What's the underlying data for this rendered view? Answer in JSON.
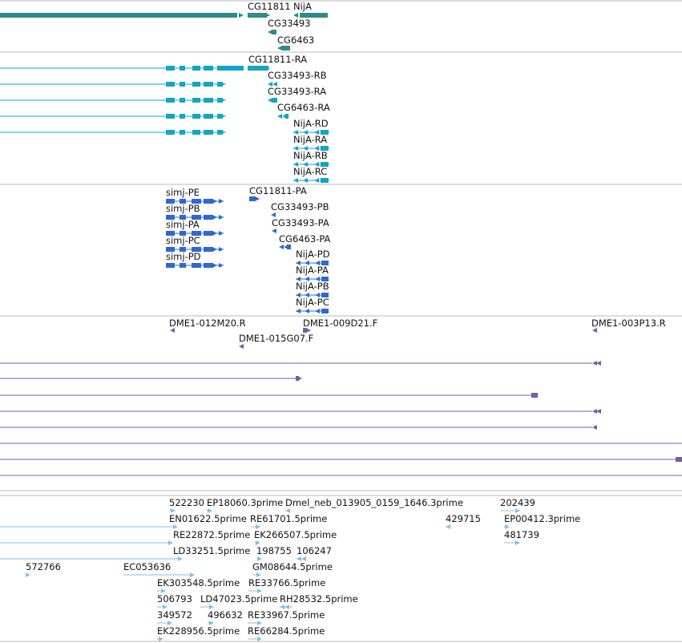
{
  "colors": {
    "genes": "#2e8b8b",
    "transcripts": "#12a6c4",
    "proteins": "#2f69cf",
    "clones": "#7a5aa6",
    "ests": "#86c0e6"
  },
  "tracks": {
    "genes": {
      "labels": [
        {
          "text": "CG11811"
        },
        {
          "text": "NijA"
        },
        {
          "text": "CG33493"
        },
        {
          "text": "CG6463"
        }
      ]
    },
    "transcripts": {
      "labels": [
        {
          "text": "CG11811-RA"
        },
        {
          "text": "CG33493-RB"
        },
        {
          "text": "CG33493-RA"
        },
        {
          "text": "CG6463-RA"
        },
        {
          "text": "NijA-RD"
        },
        {
          "text": "NijA-RA"
        },
        {
          "text": "NijA-RB"
        },
        {
          "text": "NijA-RC"
        }
      ]
    },
    "proteins": {
      "labels": [
        {
          "text": "simj-PE"
        },
        {
          "text": "simj-PB"
        },
        {
          "text": "simj-PA"
        },
        {
          "text": "simj-PC"
        },
        {
          "text": "simj-PD"
        },
        {
          "text": "CG11811-PA"
        },
        {
          "text": "CG33493-PB"
        },
        {
          "text": "CG33493-PA"
        },
        {
          "text": "CG6463-PA"
        },
        {
          "text": "NijA-PD"
        },
        {
          "text": "NijA-PA"
        },
        {
          "text": "NijA-PB"
        },
        {
          "text": "NijA-PC"
        }
      ]
    },
    "clones": {
      "labels": [
        {
          "text": "DME1-012M20.R"
        },
        {
          "text": "DME1-009D21.F"
        },
        {
          "text": "DME1-003P13.R"
        },
        {
          "text": "DME1-015G07.F"
        }
      ]
    },
    "ests": {
      "labels": [
        {
          "text": "522230"
        },
        {
          "text": "EP18060.3prime"
        },
        {
          "text": "Dmel_neb_013905_0159_1646.3prime"
        },
        {
          "text": "202439"
        },
        {
          "text": "EN01622.5prime"
        },
        {
          "text": "RE61701.5prime"
        },
        {
          "text": "429715"
        },
        {
          "text": "EP00412.3prime"
        },
        {
          "text": "RE22872.5prime"
        },
        {
          "text": "EK266507.5prime"
        },
        {
          "text": "481739"
        },
        {
          "text": "LD33251.5prime"
        },
        {
          "text": "198755"
        },
        {
          "text": "106247"
        },
        {
          "text": "572766"
        },
        {
          "text": "EC053636"
        },
        {
          "text": "GM08644.5prime"
        },
        {
          "text": "EK303548.5prime"
        },
        {
          "text": "RE33766.5prime"
        },
        {
          "text": "506793"
        },
        {
          "text": "LD47023.5prime"
        },
        {
          "text": "RH28532.5prime"
        },
        {
          "text": "349572"
        },
        {
          "text": "496632"
        },
        {
          "text": "RE33967.5prime"
        },
        {
          "text": "EK228956.5prime"
        },
        {
          "text": "RE66284.5prime"
        }
      ]
    }
  }
}
